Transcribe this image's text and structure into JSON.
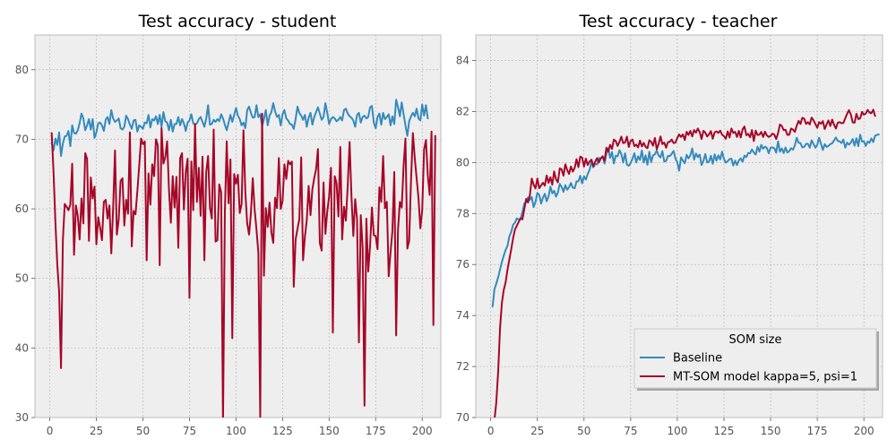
{
  "chart_data": [
    {
      "type": "line",
      "title": "Test accuracy - student",
      "xlabel": "",
      "ylabel": "",
      "xlim": [
        -8,
        210
      ],
      "ylim": [
        30,
        85
      ],
      "xticks": [
        0,
        25,
        50,
        75,
        100,
        125,
        150,
        175,
        200
      ],
      "yticks": [
        30,
        40,
        50,
        60,
        70,
        80
      ],
      "grid": true,
      "x_start": 1,
      "series": [
        {
          "name": "Baseline",
          "color": "#348ABD",
          "values": [
            69.5,
            68.4,
            70.1,
            69.2,
            71.0,
            67.6,
            69.4,
            70.4,
            70.5,
            71.2,
            69.0,
            72.0,
            70.9,
            70.8,
            71.3,
            72.3,
            73.7,
            73.0,
            71.3,
            72.0,
            72.9,
            71.4,
            72.9,
            70.2,
            71.0,
            72.3,
            72.4,
            72.0,
            71.2,
            72.8,
            73.2,
            72.2,
            74.2,
            73.0,
            72.5,
            72.7,
            73.0,
            71.6,
            71.4,
            71.8,
            73.4,
            72.9,
            72.1,
            71.5,
            72.7,
            72.8,
            71.1,
            72.0,
            71.8,
            71.5,
            72.4,
            72.3,
            73.5,
            71.7,
            72.9,
            72.7,
            73.3,
            72.2,
            73.5,
            71.8,
            73.9,
            72.6,
            72.4,
            71.3,
            72.8,
            71.1,
            72.2,
            72.2,
            73.2,
            72.0,
            72.9,
            72.3,
            71.2,
            72.4,
            72.7,
            73.6,
            72.3,
            72.1,
            72.3,
            72.9,
            73.2,
            72.5,
            71.8,
            73.0,
            74.9,
            72.1,
            72.2,
            72.8,
            72.5,
            72.9,
            72.6,
            73.6,
            73.0,
            72.1,
            71.3,
            72.4,
            73.5,
            72.5,
            73.5,
            74.5,
            73.4,
            72.9,
            72.0,
            72.4,
            71.6,
            74.2,
            74.7,
            73.8,
            73.1,
            73.2,
            74.9,
            73.2,
            73.6,
            71.9,
            72.9,
            74.2,
            72.0,
            73.4,
            73.9,
            75.2,
            74.0,
            73.2,
            73.5,
            72.0,
            73.6,
            74.2,
            73.0,
            72.7,
            72.2,
            72.1,
            71.5,
            72.9,
            74.7,
            73.8,
            73.4,
            72.8,
            73.5,
            71.8,
            73.1,
            73.8,
            72.1,
            73.2,
            73.9,
            74.6,
            73.7,
            72.8,
            73.2,
            75.2,
            73.8,
            72.2,
            72.9,
            73.2,
            73.0,
            72.6,
            72.8,
            73.2,
            72.7,
            74.2,
            74.4,
            73.7,
            73.3,
            73.1,
            72.7,
            71.8,
            73.5,
            73.8,
            72.4,
            73.2,
            73.4,
            73.0,
            73.2,
            74.6,
            74.8,
            72.4,
            71.6,
            73.2,
            73.7,
            72.1,
            73.8,
            72.9,
            73.2,
            73.6,
            72.0,
            73.3,
            72.2,
            75.7,
            74.6,
            73.3,
            75.3,
            73.6,
            72.0,
            70.5,
            72.6,
            73.3,
            73.8,
            73.3,
            74.4,
            73.0,
            72.7,
            75.0,
            73.4,
            74.9,
            73.0
          ]
        },
        {
          "name": "MT-SOM model kappa=5, psi=1",
          "color": "#A60628",
          "values": [
            70.9,
            65.2,
            58.0,
            52.0,
            48.0,
            37.1,
            55.5,
            60.7,
            60.3,
            59.8,
            60.6,
            66.5,
            53.4,
            60.5,
            59.0,
            55.6,
            61.5,
            57.9,
            68.0,
            67.2,
            55.4,
            64.5,
            61.5,
            63.2,
            54.9,
            58.8,
            57.3,
            55.5,
            61.0,
            61.3,
            58.6,
            60.5,
            53.6,
            60.1,
            68.4,
            56.3,
            58.5,
            64.0,
            64.4,
            57.6,
            61.3,
            59.3,
            71.0,
            54.6,
            59.7,
            59.2,
            62.5,
            66.2,
            70.1,
            69.3,
            69.7,
            52.6,
            65.1,
            60.6,
            66.4,
            64.7,
            70.0,
            69.1,
            51.9,
            71.6,
            66.5,
            67.4,
            69.7,
            62.7,
            58.0,
            64.7,
            60.2,
            64.6,
            54.4,
            67.3,
            68.0,
            59.9,
            65.3,
            67.2,
            47.2,
            66.8,
            59.8,
            72.2,
            61.0,
            65.9,
            59.0,
            67.5,
            52.6,
            65.3,
            67.6,
            60.2,
            58.6,
            71.4,
            55.3,
            55.5,
            63.5,
            62.4,
            29.0,
            59.3,
            69.7,
            60.8,
            67.1,
            41.4,
            65.0,
            63.6,
            64.9,
            59.4,
            60.7,
            71.3,
            62.4,
            57.9,
            56.3,
            59.4,
            64.4,
            59.9,
            57.0,
            53.7,
            30.0,
            73.7,
            50.4,
            60.1,
            57.4,
            60.9,
            56.6,
            55.1,
            61.6,
            60.1,
            67.3,
            60.0,
            61.1,
            66.4,
            64.3,
            66.9,
            66.4,
            66.8,
            48.8,
            55.6,
            57.1,
            58.5,
            67.4,
            52.6,
            56.0,
            58.4,
            63.3,
            59.1,
            62.8,
            64.4,
            65.7,
            68.6,
            55.1,
            54.0,
            63.8,
            56.4,
            59.6,
            61.8,
            65.9,
            42.2,
            64.7,
            63.7,
            58.9,
            68.9,
            55.6,
            60.3,
            58.3,
            63.4,
            69.6,
            61.8,
            56.1,
            61.4,
            58.5,
            40.8,
            59.1,
            54.5,
            31.7,
            58.6,
            51.0,
            54.7,
            60.2,
            56.2,
            56.1,
            54.2,
            63.1,
            61.0,
            67.6,
            60.1,
            61.0,
            50.3,
            53.8,
            56.8,
            65.3,
            41.8,
            57.0,
            61.0,
            60.2,
            66.2,
            70.1,
            54.3,
            55.4,
            64.2,
            70.9,
            67.3,
            64.4,
            61.6,
            57.2,
            59.8,
            68.5,
            69.9,
            64.8,
            62.0,
            71.1,
            43.3,
            70.5
          ]
        }
      ]
    },
    {
      "type": "line",
      "title": "Test accuracy - teacher",
      "xlabel": "",
      "ylabel": "",
      "xlim": [
        -8,
        210
      ],
      "ylim": [
        70,
        85
      ],
      "xticks": [
        0,
        25,
        50,
        75,
        100,
        125,
        150,
        175,
        200
      ],
      "yticks": [
        70,
        72,
        74,
        76,
        78,
        80,
        82,
        84
      ],
      "grid": true,
      "x_start": 1,
      "legend_title": "SOM size",
      "legend_position": "lower-right",
      "series": [
        {
          "name": "Baseline",
          "color": "#348ABD",
          "values": [
            74.35,
            75.03,
            75.25,
            75.5,
            75.8,
            76.1,
            76.35,
            76.57,
            76.73,
            77.1,
            77.28,
            77.56,
            77.64,
            77.81,
            77.76,
            77.8,
            78.05,
            78.39,
            78.45,
            78.63,
            78.53,
            78.65,
            78.25,
            78.45,
            78.81,
            78.73,
            78.39,
            78.62,
            78.77,
            78.48,
            78.67,
            79.05,
            78.79,
            78.89,
            78.66,
            78.82,
            79.16,
            79.04,
            78.85,
            79.11,
            78.93,
            79.03,
            79.2,
            79.01,
            78.99,
            79.26,
            79.26,
            79.48,
            79.18,
            79.46,
            79.33,
            79.55,
            79.71,
            80.02,
            79.81,
            79.95,
            79.92,
            80.18,
            80.16,
            80.25,
            79.96,
            80.34,
            80.55,
            80.18,
            80.41,
            79.96,
            80.27,
            80.24,
            80.48,
            80.33,
            80.0,
            80.36,
            79.91,
            79.87,
            79.98,
            80.15,
            80.36,
            80.0,
            80.24,
            80.1,
            80.47,
            80.0,
            80.28,
            79.91,
            80.42,
            80.01,
            80.28,
            80.32,
            80.47,
            80.27,
            80.2,
            80.44,
            80.04,
            80.06,
            80.26,
            80.25,
            80.34,
            80.45,
            80.16,
            80.0,
            79.68,
            80.2,
            80.07,
            79.97,
            80.3,
            80.16,
            80.28,
            80.55,
            80.11,
            80.35,
            80.21,
            80.31,
            79.9,
            80.06,
            80.33,
            80.0,
            80.03,
            80.26,
            79.95,
            80.32,
            80.07,
            80.28,
            80.12,
            80.42,
            80.14,
            79.99,
            80.05,
            80.13,
            80.15,
            79.88,
            80.07,
            79.9,
            80.08,
            80.16,
            80.03,
            80.27,
            80.21,
            80.37,
            80.36,
            80.51,
            80.39,
            80.31,
            80.62,
            80.42,
            80.69,
            80.54,
            80.62,
            80.57,
            80.36,
            80.58,
            80.59,
            80.56,
            80.38,
            80.83,
            80.42,
            80.55,
            80.37,
            80.59,
            80.39,
            80.44,
            80.56,
            80.5,
            80.67,
            80.97,
            80.77,
            80.76,
            80.59,
            80.61,
            80.73,
            80.73,
            80.58,
            80.87,
            80.72,
            80.58,
            80.69,
            80.97,
            80.73,
            80.49,
            80.72,
            80.61,
            80.65,
            80.72,
            80.75,
            80.86,
            80.98,
            80.84,
            80.83,
            80.76,
            80.9,
            80.58,
            80.78,
            80.7,
            80.78,
            80.92,
            80.66,
            80.95,
            80.64,
            81.09,
            80.82,
            80.83,
            80.65,
            80.82,
            80.77,
            80.94,
            80.8,
            81.05,
            81.08,
            81.1
          ]
        },
        {
          "name": "MT-SOM model kappa=5, psi=1",
          "color": "#A60628",
          "values": [
            69.0,
            69.9,
            70.6,
            71.8,
            73.5,
            74.5,
            75.0,
            75.3,
            75.8,
            76.2,
            76.6,
            77.03,
            77.37,
            77.52,
            77.67,
            77.81,
            77.77,
            78.17,
            78.57,
            78.43,
            78.72,
            79.37,
            79.13,
            78.98,
            79.37,
            78.99,
            79.1,
            79.2,
            79.09,
            79.49,
            79.2,
            79.42,
            79.13,
            79.65,
            79.34,
            79.22,
            79.77,
            79.73,
            79.48,
            79.93,
            79.7,
            79.55,
            79.84,
            79.64,
            79.79,
            80.13,
            79.82,
            80.23,
            80.19,
            79.84,
            80.15,
            79.9,
            80.04,
            80.11,
            79.85,
            80.03,
            80.17,
            80.0,
            80.16,
            80.23,
            80.06,
            80.58,
            80.43,
            80.69,
            80.53,
            80.9,
            80.84,
            80.65,
            80.81,
            81.01,
            80.76,
            80.78,
            81.01,
            80.61,
            80.85,
            80.9,
            80.64,
            80.7,
            80.59,
            80.86,
            80.63,
            80.77,
            80.61,
            80.56,
            80.87,
            80.81,
            80.66,
            80.96,
            80.52,
            80.73,
            81.02,
            80.72,
            80.78,
            80.58,
            80.8,
            80.81,
            80.9,
            80.76,
            80.78,
            80.96,
            81.1,
            81.0,
            81.1,
            80.88,
            81.2,
            81.08,
            81.24,
            81.02,
            81.27,
            81.17,
            81.33,
            81.19,
            80.92,
            81.24,
            81.17,
            81.02,
            81.1,
            81.23,
            80.93,
            81.18,
            81.22,
            81.16,
            81.25,
            81.09,
            81.03,
            80.93,
            81.22,
            80.98,
            81.33,
            81.16,
            81.2,
            81.0,
            81.24,
            80.98,
            81.3,
            81.41,
            81.07,
            81.12,
            80.99,
            81.27,
            80.84,
            81.25,
            81.08,
            81.09,
            81.2,
            81.0,
            81.21,
            81.06,
            81.0,
            81.04,
            81.13,
            81.09,
            80.92,
            81.15,
            81.49,
            81.43,
            81.27,
            81.28,
            81.08,
            81.09,
            81.33,
            81.29,
            81.2,
            81.44,
            81.63,
            81.51,
            81.75,
            81.72,
            81.51,
            81.58,
            81.49,
            81.76,
            81.65,
            81.51,
            81.36,
            81.58,
            81.52,
            81.62,
            81.31,
            81.49,
            81.65,
            81.43,
            81.68,
            81.48,
            81.33,
            81.56,
            81.58,
            81.54,
            81.55,
            81.73,
            81.91,
            82.05,
            81.88,
            81.57,
            81.56,
            81.91,
            81.7,
            81.73,
            81.98,
            81.87,
            81.92,
            82.06,
            81.96,
            81.93,
            82.07,
            81.82
          ]
        }
      ]
    }
  ]
}
